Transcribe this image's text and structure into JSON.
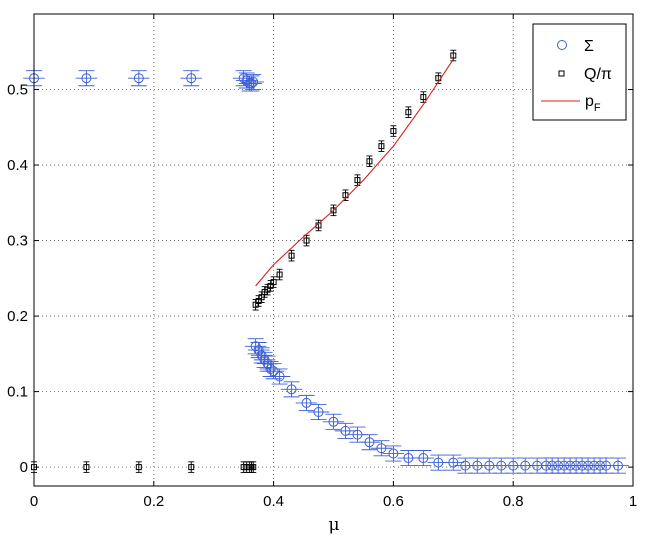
{
  "chart_data": {
    "type": "scatter",
    "xlabel": "μ",
    "ylabel": "",
    "xlim": [
      0,
      1
    ],
    "ylim": [
      -0.025,
      0.6
    ],
    "xticks": [
      "0",
      "0.2",
      "0.4",
      "0.6",
      "0.8",
      "1"
    ],
    "yticks": [
      "0",
      "0.1",
      "0.2",
      "0.3",
      "0.4",
      "0.5"
    ],
    "grid": true,
    "legend_position": "top-right",
    "legend": {
      "sigma": "Σ",
      "q_main": "Q/π",
      "pf_main": "p",
      "pf_sub": "F"
    },
    "colors": {
      "sigma": "#3c5fd8",
      "q": "#000000",
      "pf": "#d62020"
    },
    "series": [
      {
        "name": "Σ",
        "marker": "circle",
        "x": [
          0.0,
          0.0875,
          0.175,
          0.2625,
          0.35,
          0.355,
          0.36,
          0.363,
          0.366,
          0.37,
          0.375,
          0.38,
          0.385,
          0.39,
          0.395,
          0.4,
          0.41,
          0.43,
          0.455,
          0.475,
          0.5,
          0.52,
          0.54,
          0.56,
          0.58,
          0.6,
          0.625,
          0.65,
          0.675,
          0.7,
          0.72,
          0.74,
          0.76,
          0.78,
          0.8,
          0.82,
          0.84,
          0.855,
          0.865,
          0.875,
          0.885,
          0.895,
          0.905,
          0.915,
          0.925,
          0.935,
          0.945,
          0.955,
          0.975
        ],
        "y": [
          0.515,
          0.515,
          0.515,
          0.515,
          0.515,
          0.512,
          0.508,
          0.508,
          0.51,
          0.16,
          0.155,
          0.148,
          0.142,
          0.137,
          0.13,
          0.127,
          0.12,
          0.103,
          0.085,
          0.073,
          0.06,
          0.048,
          0.043,
          0.033,
          0.025,
          0.018,
          0.012,
          0.012,
          0.006,
          0.006,
          0.002,
          0.002,
          0.002,
          0.002,
          0.002,
          0.002,
          0.002,
          0.002,
          0.002,
          0.002,
          0.002,
          0.002,
          0.002,
          0.002,
          0.002,
          0.002,
          0.002,
          0.002,
          0.002
        ],
        "xerr": 0.018,
        "yerr": 0.01
      },
      {
        "name": "Q/π",
        "marker": "square",
        "x": [
          0.0,
          0.0875,
          0.175,
          0.2625,
          0.35,
          0.355,
          0.36,
          0.363,
          0.366,
          0.37,
          0.375,
          0.38,
          0.385,
          0.39,
          0.395,
          0.4,
          0.41,
          0.43,
          0.455,
          0.475,
          0.5,
          0.52,
          0.54,
          0.56,
          0.58,
          0.6,
          0.625,
          0.65,
          0.675,
          0.7
        ],
        "y": [
          0.0,
          0.0,
          0.0,
          0.0,
          0.0,
          0.0,
          0.0,
          0.0,
          0.0,
          0.215,
          0.22,
          0.225,
          0.232,
          0.235,
          0.24,
          0.245,
          0.255,
          0.28,
          0.3,
          0.32,
          0.34,
          0.36,
          0.38,
          0.405,
          0.425,
          0.445,
          0.47,
          0.49,
          0.515,
          0.545
        ],
        "yerr": 0.007
      },
      {
        "name": "p_F",
        "marker": "line",
        "x": [
          0.37,
          0.4,
          0.45,
          0.5,
          0.55,
          0.6,
          0.65,
          0.7
        ],
        "y": [
          0.24,
          0.268,
          0.305,
          0.34,
          0.38,
          0.425,
          0.48,
          0.54
        ]
      }
    ]
  }
}
